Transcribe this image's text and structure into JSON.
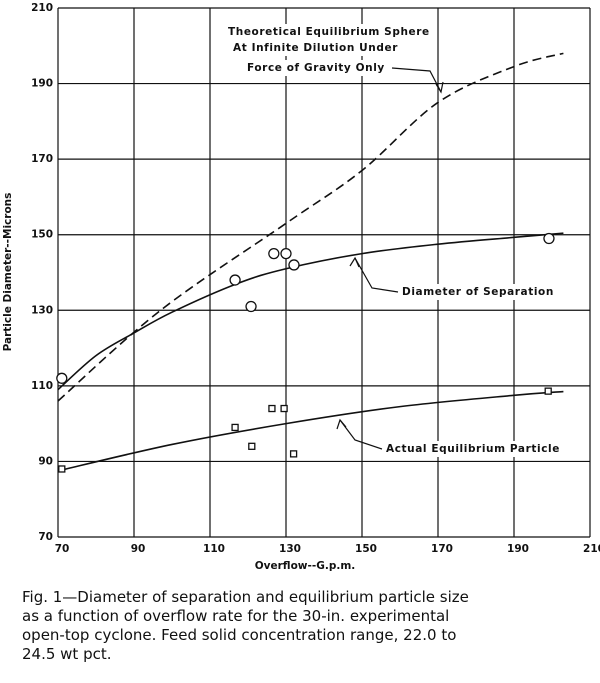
{
  "chart_data": {
    "type": "line",
    "xlabel": "Overflow--G.p.m.",
    "ylabel": "Particle Diameter--Microns",
    "xlim": [
      70,
      210
    ],
    "ylim": [
      70,
      210
    ],
    "xticks": [
      70,
      90,
      110,
      130,
      150,
      170,
      190,
      210
    ],
    "yticks": [
      70,
      90,
      110,
      130,
      150,
      170,
      190,
      210
    ],
    "grid": true,
    "series": [
      {
        "marker": "none",
        "dash": true,
        "color": "#111",
        "x": [
          70,
          97,
          130,
          150,
          170,
          190,
          203
        ],
        "values": [
          106,
          130,
          153,
          167,
          185,
          194.5,
          198
        ]
      },
      {
        "marker": "none",
        "dash": false,
        "color": "#111",
        "x": [
          70,
          80,
          90,
          100,
          117,
          130,
          150,
          170,
          190,
          203
        ],
        "values": [
          109,
          118,
          124,
          129.5,
          137,
          141,
          145,
          147.5,
          149.3,
          150.4
        ]
      },
      {
        "marker": "circle",
        "dash": false,
        "color": "#111",
        "x": [
          71,
          116.6,
          120.8,
          126.8,
          130,
          132.1,
          199.2
        ],
        "values": [
          112,
          138,
          131,
          145,
          145,
          142,
          149
        ]
      },
      {
        "marker": "none",
        "dash": false,
        "color": "#111",
        "x": [
          70,
          100,
          130,
          160,
          190,
          203
        ],
        "values": [
          87.5,
          94.5,
          100,
          104.5,
          107.5,
          108.5
        ]
      },
      {
        "marker": "square",
        "dash": false,
        "color": "#111",
        "x": [
          71,
          116.6,
          121,
          126.3,
          129.5,
          132,
          199
        ],
        "values": [
          88,
          99,
          94,
          104,
          104,
          92,
          108.6
        ]
      }
    ],
    "annotations": [
      [
        "Theoretical Equilibrium Sphere",
        "At Infinite Dilution Under",
        "Force of Gravity Only"
      ],
      [
        "Diameter of Separation"
      ],
      [
        "Actual Equilibrium Particle"
      ]
    ],
    "caption": [
      "Fig. 1—Diameter of separation and equilibrium particle size",
      "as a function of overflow rate for the 30-in. experimental",
      "open-top cyclone.  Feed solid concentration range, 22.0 to",
      "24.5 wt pct."
    ]
  }
}
